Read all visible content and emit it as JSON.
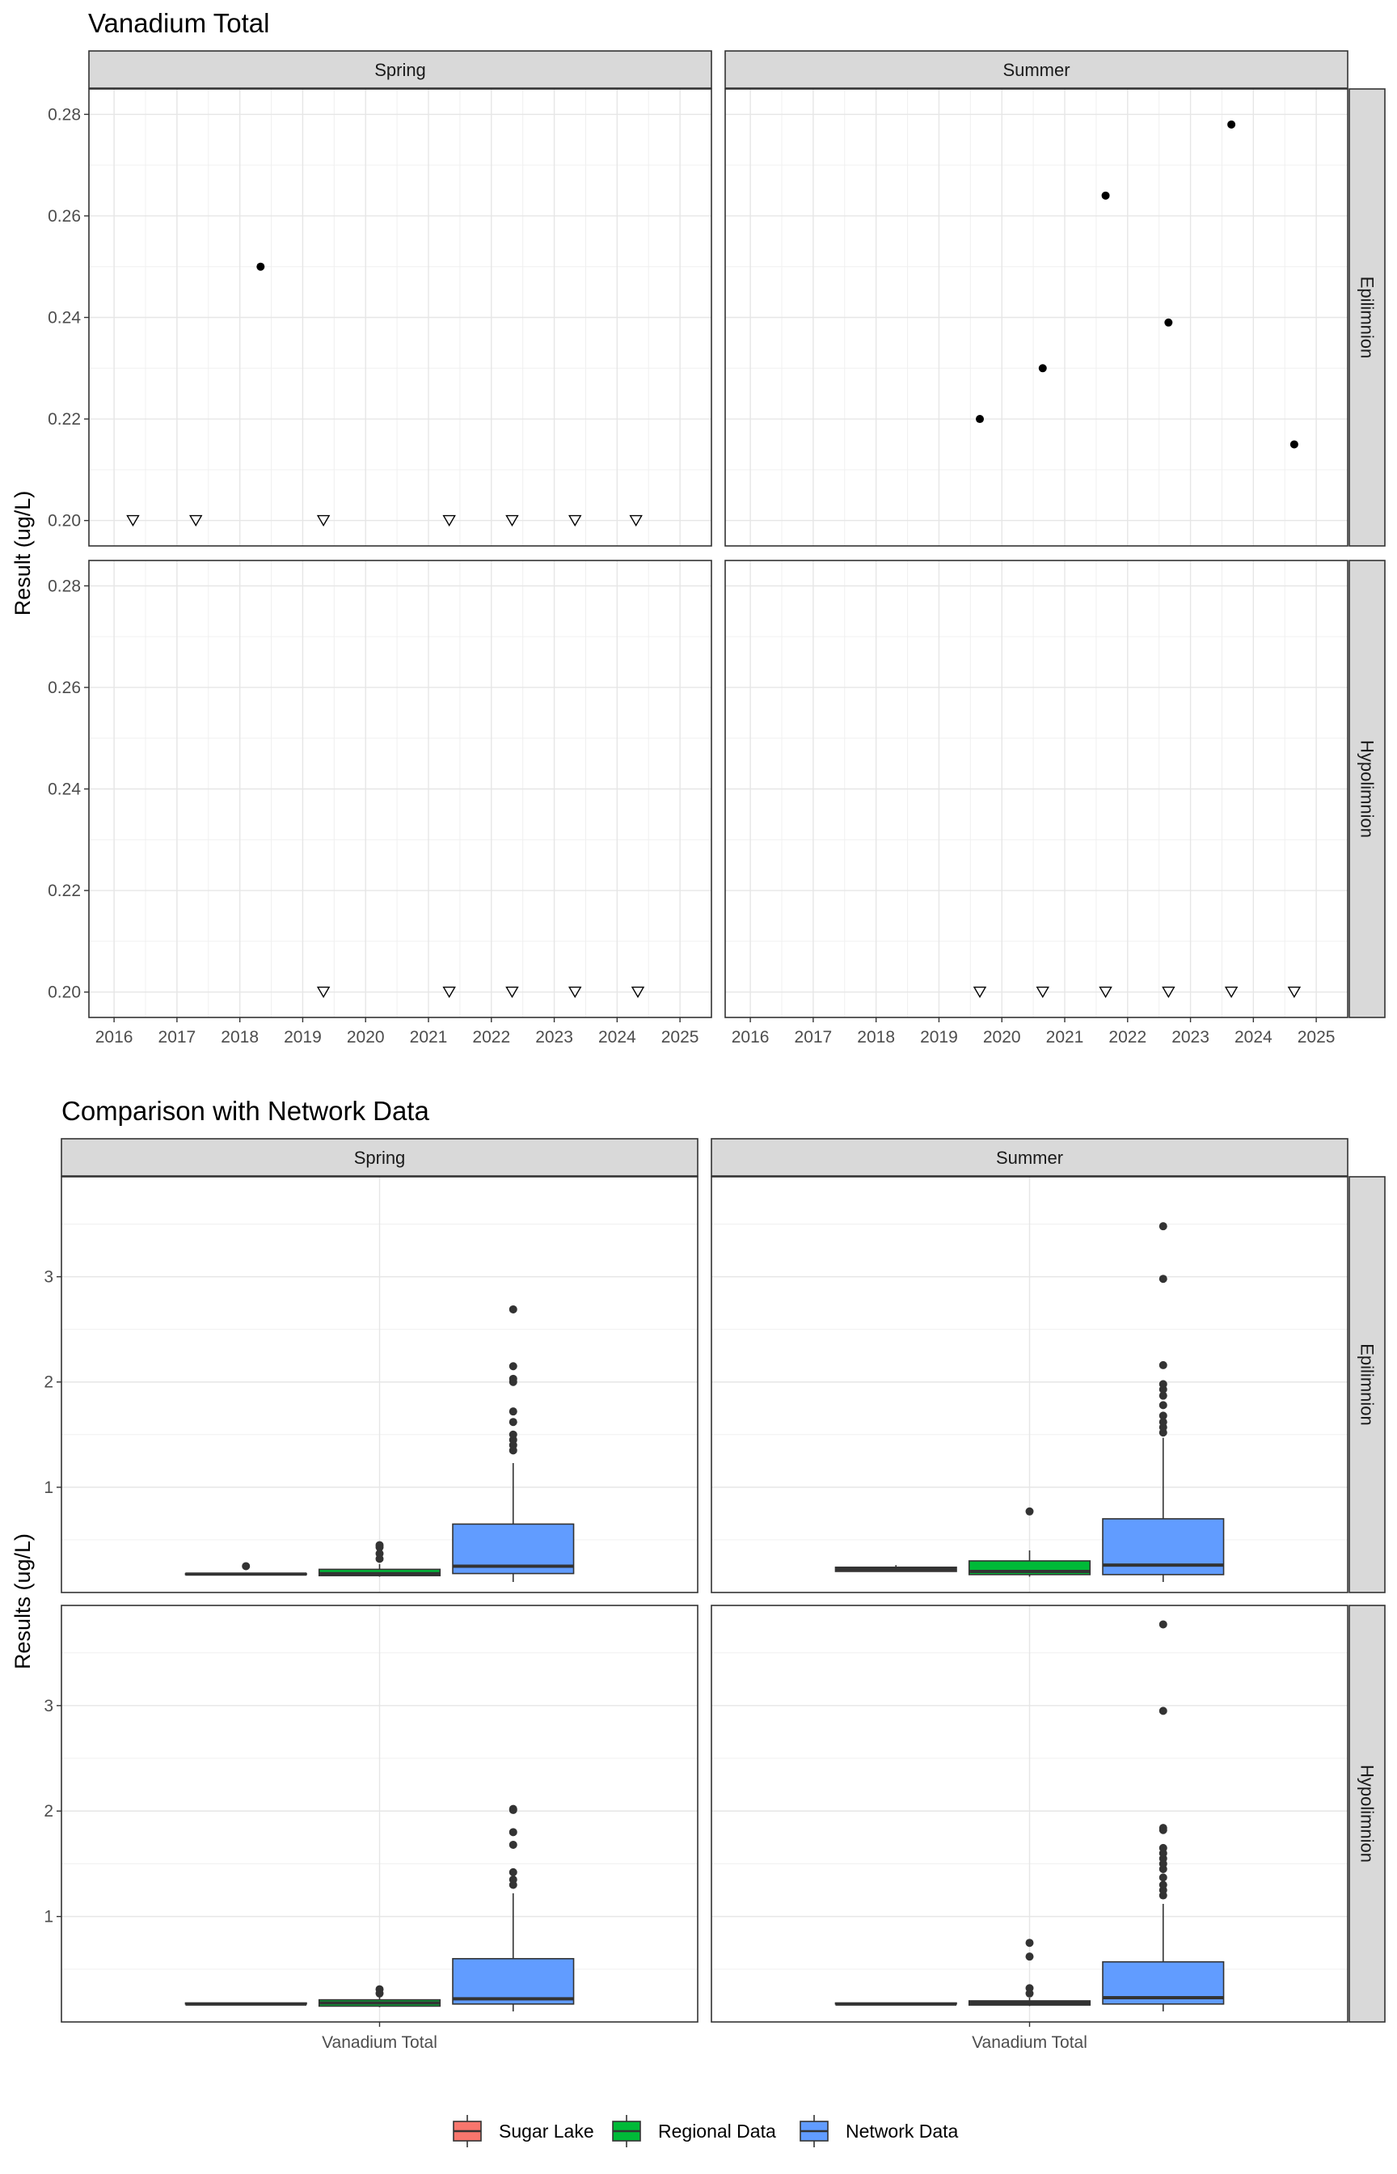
{
  "chart_data": [
    {
      "type": "scatter",
      "title": "Vanadium Total",
      "ylabel": "Result (ug/L)",
      "xlabel": "",
      "x_ticks": [
        "2016",
        "2017",
        "2018",
        "2019",
        "2020",
        "2021",
        "2022",
        "2023",
        "2024",
        "2025"
      ],
      "y_ticks": [
        "0.20",
        "0.22",
        "0.24",
        "0.26",
        "0.28"
      ],
      "xlim": [
        2015.6,
        2025.5
      ],
      "ylim": [
        0.195,
        0.285
      ],
      "grid": true,
      "columns": [
        "Spring",
        "Summer"
      ],
      "rows": [
        "Epilimnion",
        "Hypolimnion"
      ],
      "panels": [
        {
          "column": "Spring",
          "row": "Epilimnion",
          "detected": [
            {
              "x": 2018.33,
              "y": 0.25
            }
          ],
          "below_detection": [
            {
              "x": 2016.3,
              "y": 0.2
            },
            {
              "x": 2017.3,
              "y": 0.2
            },
            {
              "x": 2019.33,
              "y": 0.2
            },
            {
              "x": 2021.33,
              "y": 0.2
            },
            {
              "x": 2022.33,
              "y": 0.2
            },
            {
              "x": 2023.33,
              "y": 0.2
            },
            {
              "x": 2024.3,
              "y": 0.2
            }
          ]
        },
        {
          "column": "Summer",
          "row": "Epilimnion",
          "detected": [
            {
              "x": 2019.65,
              "y": 0.22
            },
            {
              "x": 2020.65,
              "y": 0.23
            },
            {
              "x": 2021.65,
              "y": 0.264
            },
            {
              "x": 2022.65,
              "y": 0.239
            },
            {
              "x": 2023.65,
              "y": 0.278
            },
            {
              "x": 2024.65,
              "y": 0.215
            }
          ],
          "below_detection": []
        },
        {
          "column": "Spring",
          "row": "Hypolimnion",
          "detected": [],
          "below_detection": [
            {
              "x": 2019.33,
              "y": 0.2
            },
            {
              "x": 2021.33,
              "y": 0.2
            },
            {
              "x": 2022.33,
              "y": 0.2
            },
            {
              "x": 2023.33,
              "y": 0.2
            },
            {
              "x": 2024.33,
              "y": 0.2
            }
          ]
        },
        {
          "column": "Summer",
          "row": "Hypolimnion",
          "detected": [],
          "below_detection": [
            {
              "x": 2019.65,
              "y": 0.2
            },
            {
              "x": 2020.65,
              "y": 0.2
            },
            {
              "x": 2021.65,
              "y": 0.2
            },
            {
              "x": 2022.65,
              "y": 0.2
            },
            {
              "x": 2023.65,
              "y": 0.2
            },
            {
              "x": 2024.65,
              "y": 0.2
            }
          ]
        }
      ]
    },
    {
      "type": "boxplot",
      "title": "Comparison with Network Data",
      "ylabel": "Results (ug/L)",
      "xlabel": "",
      "category": "Vanadium Total",
      "y_ticks": [
        "1",
        "2",
        "3"
      ],
      "ylim": [
        0.0,
        3.95
      ],
      "grid": true,
      "columns": [
        "Spring",
        "Summer"
      ],
      "rows": [
        "Epilimnion",
        "Hypolimnion"
      ],
      "legend": {
        "position": "bottom",
        "entries": [
          {
            "name": "Sugar Lake",
            "color": "#F8766D"
          },
          {
            "name": "Regional Data",
            "color": "#00BA38"
          },
          {
            "name": "Network Data",
            "color": "#619CFF"
          }
        ]
      },
      "panels": [
        {
          "column": "Spring",
          "row": "Epilimnion",
          "boxes": [
            {
              "group": "Sugar Lake",
              "q1": 0.17,
              "median": 0.175,
              "q3": 0.18,
              "whisker_low": 0.17,
              "whisker_high": 0.18,
              "outliers": [
                0.25
              ]
            },
            {
              "group": "Regional Data",
              "q1": 0.16,
              "median": 0.18,
              "q3": 0.22,
              "whisker_low": 0.15,
              "whisker_high": 0.27,
              "outliers": [
                0.32,
                0.37,
                0.43,
                0.45
              ]
            },
            {
              "group": "Network Data",
              "q1": 0.18,
              "median": 0.25,
              "q3": 0.65,
              "whisker_low": 0.1,
              "whisker_high": 1.23,
              "outliers": [
                1.35,
                1.4,
                1.45,
                1.5,
                1.62,
                1.72,
                2.0,
                2.03,
                2.15,
                2.69
              ]
            }
          ]
        },
        {
          "column": "Summer",
          "row": "Epilimnion",
          "boxes": [
            {
              "group": "Sugar Lake",
              "q1": 0.2,
              "median": 0.22,
              "q3": 0.24,
              "whisker_low": 0.2,
              "whisker_high": 0.26,
              "outliers": []
            },
            {
              "group": "Regional Data",
              "q1": 0.17,
              "median": 0.2,
              "q3": 0.3,
              "whisker_low": 0.15,
              "whisker_high": 0.4,
              "outliers": [
                0.77
              ]
            },
            {
              "group": "Network Data",
              "q1": 0.17,
              "median": 0.26,
              "q3": 0.7,
              "whisker_low": 0.1,
              "whisker_high": 1.47,
              "outliers": [
                1.52,
                1.57,
                1.62,
                1.68,
                1.78,
                1.87,
                1.93,
                1.98,
                2.16,
                2.98,
                3.48
              ]
            }
          ]
        },
        {
          "column": "Spring",
          "row": "Hypolimnion",
          "boxes": [
            {
              "group": "Sugar Lake",
              "q1": 0.17,
              "median": 0.17,
              "q3": 0.18,
              "whisker_low": 0.17,
              "whisker_high": 0.18,
              "outliers": []
            },
            {
              "group": "Regional Data",
              "q1": 0.15,
              "median": 0.18,
              "q3": 0.21,
              "whisker_low": 0.14,
              "whisker_high": 0.25,
              "outliers": [
                0.27,
                0.31
              ]
            },
            {
              "group": "Network Data",
              "q1": 0.17,
              "median": 0.22,
              "q3": 0.6,
              "whisker_low": 0.1,
              "whisker_high": 1.22,
              "outliers": [
                1.3,
                1.35,
                1.42,
                1.68,
                1.8,
                2.01,
                2.02
              ]
            }
          ]
        },
        {
          "column": "Summer",
          "row": "Hypolimnion",
          "boxes": [
            {
              "group": "Sugar Lake",
              "q1": 0.17,
              "median": 0.17,
              "q3": 0.18,
              "whisker_low": 0.17,
              "whisker_high": 0.18,
              "outliers": []
            },
            {
              "group": "Regional Data",
              "q1": 0.16,
              "median": 0.18,
              "q3": 0.2,
              "whisker_low": 0.15,
              "whisker_high": 0.23,
              "outliers": [
                0.27,
                0.32,
                0.62,
                0.75
              ]
            },
            {
              "group": "Network Data",
              "q1": 0.17,
              "median": 0.23,
              "q3": 0.57,
              "whisker_low": 0.1,
              "whisker_high": 1.12,
              "outliers": [
                1.2,
                1.25,
                1.3,
                1.37,
                1.45,
                1.5,
                1.55,
                1.6,
                1.65,
                1.82,
                1.84,
                2.95,
                3.77
              ]
            }
          ]
        }
      ]
    }
  ]
}
